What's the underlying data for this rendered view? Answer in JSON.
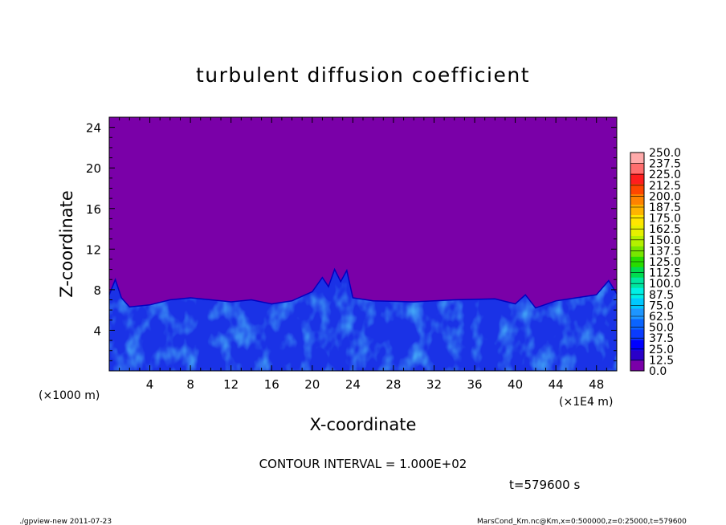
{
  "chart_data": {
    "type": "heatmap",
    "title": "turbulent diffusion coefficient",
    "xlabel": "X-coordinate",
    "ylabel": "Z-coordinate",
    "x_unit": "(×1E4 m)",
    "y_unit": "(×1000 m)",
    "xlim": [
      0,
      50
    ],
    "ylim": [
      0,
      25
    ],
    "x_ticks": [
      "4",
      "8",
      "12",
      "16",
      "20",
      "24",
      "28",
      "32",
      "36",
      "40",
      "44",
      "48"
    ],
    "y_ticks": [
      "4",
      "8",
      "12",
      "16",
      "20",
      "24"
    ],
    "colorbar_levels": [
      "0.0",
      "12.5",
      "25.0",
      "37.5",
      "50.0",
      "62.5",
      "75.0",
      "87.5",
      "100.0",
      "112.5",
      "125.0",
      "137.5",
      "150.0",
      "162.5",
      "175.0",
      "187.5",
      "200.0",
      "212.5",
      "225.0",
      "237.5",
      "250.0"
    ],
    "colorbar_colors": [
      "#7a00a8",
      "#2a00c8",
      "#0000ff",
      "#0a3cff",
      "#0a64ff",
      "#1e96ff",
      "#00c8ff",
      "#00f0e6",
      "#00e6a0",
      "#00dc50",
      "#28dc00",
      "#78e600",
      "#b4f000",
      "#e6f000",
      "#ffe600",
      "#ffb400",
      "#ff8200",
      "#ff4600",
      "#ff1e1e",
      "#ff6e6e",
      "#ffaaaa"
    ],
    "background_value_color": "#7a00a8",
    "boundary_layer_top": [
      [
        0,
        7.5
      ],
      [
        0.6,
        9.0
      ],
      [
        1.2,
        7.2
      ],
      [
        2,
        6.3
      ],
      [
        4,
        6.5
      ],
      [
        6,
        7.0
      ],
      [
        8,
        7.2
      ],
      [
        12,
        6.8
      ],
      [
        14,
        7.0
      ],
      [
        16,
        6.6
      ],
      [
        18,
        6.9
      ],
      [
        20,
        7.8
      ],
      [
        21,
        9.2
      ],
      [
        21.6,
        8.3
      ],
      [
        22.2,
        10.0
      ],
      [
        22.8,
        8.8
      ],
      [
        23.4,
        9.9
      ],
      [
        24,
        7.2
      ],
      [
        26,
        6.9
      ],
      [
        30,
        6.8
      ],
      [
        34,
        7.0
      ],
      [
        38,
        7.1
      ],
      [
        40,
        6.6
      ],
      [
        41,
        7.5
      ],
      [
        42,
        6.2
      ],
      [
        44,
        6.9
      ],
      [
        46,
        7.2
      ],
      [
        48,
        7.5
      ],
      [
        49.2,
        8.9
      ],
      [
        50,
        7.6
      ]
    ]
  },
  "contour_interval": "CONTOUR INTERVAL = 1.000E+02",
  "time_label": "t=579600  s",
  "footer_left": "./gpview-new   2011-07-23",
  "footer_right": "MarsCond_Km.nc@Km,x=0:500000,z=0:25000,t=579600"
}
